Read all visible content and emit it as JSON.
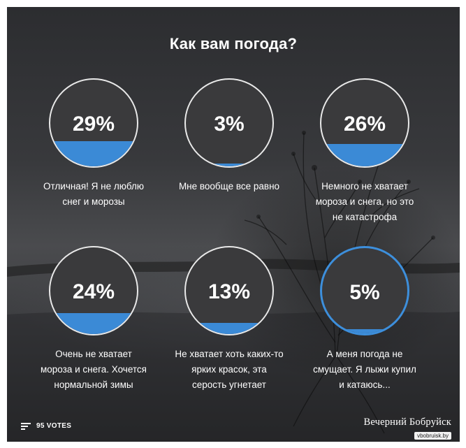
{
  "poll": {
    "title": "Как вам погода?",
    "options": [
      {
        "percent_label": "29%",
        "percent": 29,
        "label": "Отличная! Я не люблю снег и морозы",
        "selected": false
      },
      {
        "percent_label": "3%",
        "percent": 3,
        "label": "Мне вообще все равно",
        "selected": false
      },
      {
        "percent_label": "26%",
        "percent": 26,
        "label": "Немного не хватает мороза и снега, но это не катастрофа",
        "selected": false
      },
      {
        "percent_label": "24%",
        "percent": 24,
        "label": "Очень не хватает мороза и снега. Хочется нормальной зимы",
        "selected": false
      },
      {
        "percent_label": "13%",
        "percent": 13,
        "label": "Не хватает хоть каких-то ярких красок, эта серость угнетает",
        "selected": false
      },
      {
        "percent_label": "5%",
        "percent": 5,
        "label": "А меня погода не смущает. Я лыжи купил и катаюсь...",
        "selected": true
      }
    ],
    "votes_label": "95 VOTES"
  },
  "watermark": {
    "title": "Вечерний Бобруйск",
    "site": "vbobruisk.by"
  },
  "colors": {
    "fill": "#3b8ad6",
    "selected_border": "#3d8fdc",
    "circle_bg": "#3a3a3c"
  },
  "icons": {
    "votes": "bar-lines-icon"
  }
}
